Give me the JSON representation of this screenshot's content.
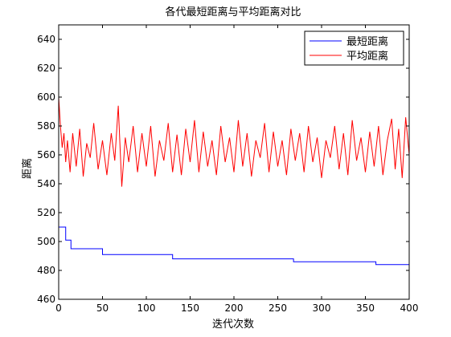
{
  "chart_data": {
    "type": "line",
    "title": "各代最短距离与平均距离对比",
    "xlabel": "迭代次数",
    "ylabel": "距离",
    "xlim": [
      0,
      400
    ],
    "ylim": [
      460,
      650
    ],
    "xticks": [
      0,
      50,
      100,
      150,
      200,
      250,
      300,
      350,
      400
    ],
    "yticks": [
      460,
      480,
      500,
      520,
      540,
      560,
      580,
      600,
      620,
      640
    ],
    "grid": false,
    "legend": "top-right",
    "series": [
      {
        "name": "最短距离",
        "color": "#0000ff",
        "style": "step",
        "x": [
          0,
          8,
          8,
          14,
          14,
          50,
          50,
          130,
          130,
          268,
          268,
          362,
          362,
          400
        ],
        "y": [
          510,
          510,
          501,
          501,
          495,
          495,
          491,
          491,
          488,
          488,
          486,
          486,
          484,
          484
        ]
      },
      {
        "name": "平均距离",
        "color": "#ff0000",
        "style": "line",
        "x": [
          0,
          2,
          4,
          6,
          8,
          10,
          13,
          16,
          20,
          24,
          28,
          32,
          36,
          40,
          45,
          50,
          55,
          60,
          64,
          68,
          72,
          76,
          80,
          85,
          90,
          95,
          100,
          105,
          110,
          115,
          120,
          125,
          130,
          135,
          140,
          145,
          150,
          155,
          160,
          165,
          170,
          175,
          180,
          185,
          190,
          195,
          200,
          205,
          210,
          215,
          220,
          225,
          230,
          235,
          240,
          245,
          250,
          255,
          260,
          265,
          270,
          275,
          280,
          285,
          290,
          295,
          300,
          305,
          310,
          315,
          320,
          325,
          330,
          335,
          340,
          345,
          350,
          355,
          360,
          365,
          370,
          375,
          380,
          384,
          388,
          392,
          396,
          400
        ],
        "y": [
          600,
          580,
          565,
          575,
          555,
          570,
          548,
          575,
          552,
          578,
          545,
          568,
          558,
          582,
          550,
          570,
          546,
          575,
          556,
          594,
          538,
          572,
          555,
          580,
          548,
          575,
          552,
          580,
          545,
          570,
          556,
          582,
          548,
          574,
          546,
          578,
          555,
          584,
          548,
          576,
          552,
          570,
          546,
          580,
          555,
          572,
          548,
          584,
          552,
          575,
          545,
          570,
          558,
          582,
          548,
          576,
          552,
          570,
          546,
          578,
          556,
          575,
          548,
          580,
          555,
          572,
          544,
          570,
          558,
          580,
          550,
          575,
          546,
          584,
          556,
          572,
          548,
          576,
          552,
          580,
          546,
          570,
          585,
          550,
          578,
          544,
          586,
          560
        ]
      }
    ]
  }
}
